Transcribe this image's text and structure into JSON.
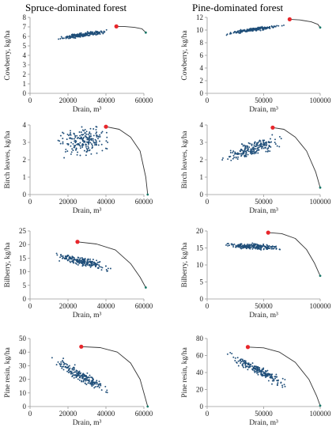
{
  "columns": [
    {
      "title": "Spruce-dominated forest"
    },
    {
      "title": "Pine-dominated forest"
    }
  ],
  "colors": {
    "points": "#1f4e79",
    "frontier": "#333333",
    "optimum": "#e8262b",
    "axis": "#9a9a9a"
  },
  "chart_data": [
    {
      "type": "scatter",
      "panel": "spruce-cowberry",
      "xlabel": "Drain, m³",
      "ylabel": "Cowberry, kg/ha",
      "xlim": [
        0,
        60000
      ],
      "ylim": [
        0,
        8
      ],
      "xticks": [
        0,
        20000,
        40000,
        60000
      ],
      "yticks": [
        0,
        1,
        2,
        3,
        4,
        5,
        6,
        7,
        8
      ],
      "xtick_labels": [
        "0",
        "20000",
        "40000",
        "60000"
      ],
      "ytick_labels": [
        "0",
        "1",
        "2",
        "3",
        "4",
        "5",
        "6",
        "7",
        "8"
      ],
      "cloud": {
        "x": [
          12000,
          43000
        ],
        "trend": [
          5.7,
          6.6
        ],
        "spread": 0.22,
        "n": 220,
        "seed": 1
      },
      "frontier": [
        [
          45500,
          7.05
        ],
        [
          50000,
          7.03
        ],
        [
          55000,
          6.95
        ],
        [
          59000,
          6.8
        ],
        [
          61000,
          6.4
        ]
      ],
      "optimum": [
        45500,
        7.05
      ]
    },
    {
      "type": "scatter",
      "panel": "pine-cowberry",
      "xlabel": "Drain, m³",
      "ylabel": "Cowberry, kg/ha",
      "xlim": [
        0,
        100000
      ],
      "ylim": [
        0,
        12
      ],
      "xticks": [
        0,
        50000,
        100000
      ],
      "yticks": [
        0,
        2,
        4,
        6,
        8,
        10,
        12
      ],
      "xtick_labels": [
        "0",
        "50000",
        "100000"
      ],
      "ytick_labels": [
        "0",
        "2",
        "4",
        "6",
        "8",
        "10",
        "12"
      ],
      "cloud": {
        "x": [
          14000,
          70000
        ],
        "trend": [
          9.4,
          10.8
        ],
        "spread": 0.25,
        "n": 200,
        "seed": 2
      },
      "frontier": [
        [
          73000,
          11.7
        ],
        [
          82000,
          11.6
        ],
        [
          92000,
          11.3
        ],
        [
          98000,
          10.9
        ],
        [
          100000,
          10.4
        ]
      ],
      "optimum": [
        73000,
        11.7
      ]
    },
    {
      "type": "scatter",
      "panel": "spruce-birch",
      "xlabel": "Drain, m³",
      "ylabel": "Birch leaves, kg/ha",
      "xlim": [
        0,
        60000
      ],
      "ylim": [
        0,
        4
      ],
      "xticks": [
        0,
        20000,
        40000,
        60000
      ],
      "yticks": [
        0,
        1,
        2,
        3,
        4
      ],
      "xtick_labels": [
        "0",
        "20000",
        "40000",
        "60000"
      ],
      "ytick_labels": [
        "0",
        "1",
        "2",
        "3",
        "4"
      ],
      "cloud": {
        "x": [
          12000,
          44000
        ],
        "trend": [
          3.0,
          3.2
        ],
        "spread": 0.75,
        "n": 200,
        "seed": 3
      },
      "frontier": [
        [
          40000,
          3.9
        ],
        [
          47000,
          3.75
        ],
        [
          53000,
          3.3
        ],
        [
          58000,
          2.5
        ],
        [
          61000,
          1.0
        ],
        [
          62000,
          0
        ]
      ],
      "optimum": [
        40000,
        3.9
      ]
    },
    {
      "type": "scatter",
      "panel": "pine-birch",
      "xlabel": "Drain, m³",
      "ylabel": "Birch leaves, kg/ha",
      "xlim": [
        0,
        100000
      ],
      "ylim": [
        0,
        4
      ],
      "xticks": [
        0,
        50000,
        100000
      ],
      "yticks": [
        0,
        1,
        2,
        3,
        4
      ],
      "xtick_labels": [
        "0",
        "50000",
        "100000"
      ],
      "ytick_labels": [
        "0",
        "1",
        "2",
        "3",
        "4"
      ],
      "cloud": {
        "x": [
          10000,
          72000
        ],
        "trend": [
          2.0,
          3.3
        ],
        "spread": 0.42,
        "n": 200,
        "seed": 4
      },
      "frontier": [
        [
          58000,
          3.85
        ],
        [
          68000,
          3.75
        ],
        [
          78000,
          3.3
        ],
        [
          88000,
          2.5
        ],
        [
          96000,
          1.3
        ],
        [
          100000,
          0.4
        ]
      ],
      "optimum": [
        58000,
        3.85
      ]
    },
    {
      "type": "scatter",
      "panel": "spruce-bilberry",
      "xlabel": "Drain, m³",
      "ylabel": "Bilberry, kg/ha",
      "xlim": [
        0,
        60000
      ],
      "ylim": [
        0,
        25
      ],
      "xticks": [
        0,
        20000,
        40000,
        60000
      ],
      "yticks": [
        0,
        5,
        10,
        15,
        20,
        25
      ],
      "xtick_labels": [
        "0",
        "20000",
        "40000",
        "60000"
      ],
      "ytick_labels": [
        "0",
        "5",
        "10",
        "15",
        "20",
        "25"
      ],
      "cloud": {
        "x": [
          10000,
          45000
        ],
        "trend": [
          16.5,
          11.0
        ],
        "spread": 1.6,
        "n": 210,
        "seed": 5
      },
      "frontier": [
        [
          25000,
          21.0
        ],
        [
          35000,
          20.2
        ],
        [
          45000,
          18.0
        ],
        [
          53000,
          13.0
        ],
        [
          58000,
          8.0
        ],
        [
          61000,
          4.2
        ]
      ],
      "optimum": [
        25000,
        21.0
      ]
    },
    {
      "type": "scatter",
      "panel": "pine-bilberry",
      "xlabel": "Drain, m³",
      "ylabel": "Bilberry, kg/ha",
      "xlim": [
        0,
        100000
      ],
      "ylim": [
        0,
        20
      ],
      "xticks": [
        0,
        50000,
        100000
      ],
      "yticks": [
        0,
        5,
        10,
        15,
        20
      ],
      "xtick_labels": [
        "0",
        "50000",
        "100000"
      ],
      "ytick_labels": [
        "0",
        "5",
        "10",
        "15",
        "20"
      ],
      "cloud": {
        "x": [
          12000,
          72000
        ],
        "trend": [
          16.0,
          14.8
        ],
        "spread": 0.75,
        "n": 210,
        "seed": 6
      },
      "frontier": [
        [
          54000,
          19.5
        ],
        [
          66000,
          19.2
        ],
        [
          78000,
          17.8
        ],
        [
          88000,
          14.5
        ],
        [
          95000,
          10.5
        ],
        [
          100000,
          6.8
        ]
      ],
      "optimum": [
        54000,
        19.5
      ]
    },
    {
      "type": "scatter",
      "panel": "spruce-resin",
      "xlabel": "Drain, m³",
      "ylabel": "Pine resin, kg/ha",
      "xlim": [
        0,
        60000
      ],
      "ylim": [
        0,
        50
      ],
      "xticks": [
        0,
        20000,
        40000,
        60000
      ],
      "yticks": [
        0,
        10,
        20,
        30,
        40,
        50
      ],
      "xtick_labels": [
        "0",
        "20000",
        "40000",
        "60000"
      ],
      "ytick_labels": [
        "0",
        "10",
        "20",
        "30",
        "40",
        "50"
      ],
      "cloud": {
        "x": [
          10000,
          45000
        ],
        "trend": [
          36.0,
          9.0
        ],
        "spread": 4.0,
        "n": 200,
        "seed": 7
      },
      "frontier": [
        [
          27000,
          44.0
        ],
        [
          37000,
          43.3
        ],
        [
          46000,
          40.0
        ],
        [
          53000,
          32.0
        ],
        [
          58000,
          20.0
        ],
        [
          62000,
          0
        ]
      ],
      "optimum": [
        27000,
        44.0
      ]
    },
    {
      "type": "scatter",
      "panel": "pine-resin",
      "xlabel": "Drain, m³",
      "ylabel": "Pine resin, kg/ha",
      "xlim": [
        0,
        100000
      ],
      "ylim": [
        0,
        80
      ],
      "xticks": [
        0,
        50000,
        100000
      ],
      "yticks": [
        0,
        20,
        40,
        60,
        80
      ],
      "xtick_labels": [
        "0",
        "50000",
        "100000"
      ],
      "ytick_labels": [
        "0",
        "20",
        "40",
        "60",
        "80"
      ],
      "cloud": {
        "x": [
          14000,
          75000
        ],
        "trend": [
          64.0,
          22.0
        ],
        "spread": 5.5,
        "n": 200,
        "seed": 8
      },
      "frontier": [
        [
          36000,
          70.0
        ],
        [
          50000,
          69.0
        ],
        [
          64000,
          64.0
        ],
        [
          78000,
          52.0
        ],
        [
          90000,
          32.0
        ],
        [
          97000,
          12.0
        ],
        [
          100000,
          1.0
        ]
      ],
      "optimum": [
        36000,
        70.0
      ]
    }
  ]
}
